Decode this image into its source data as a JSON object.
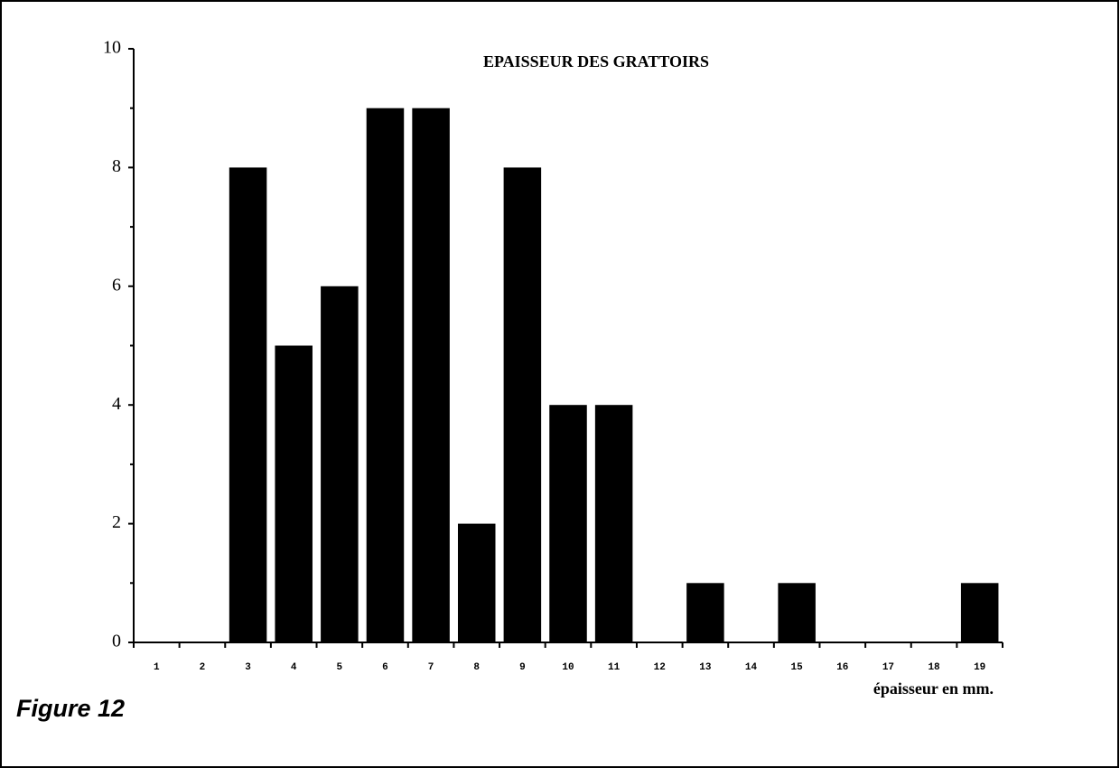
{
  "chart_data": {
    "type": "bar",
    "title": "EPAISSEUR DES GRATTOIRS",
    "xlabel": "épaisseur en mm.",
    "figure_label": "Figure 12",
    "categories": [
      "1",
      "2",
      "3",
      "4",
      "5",
      "6",
      "7",
      "8",
      "9",
      "10",
      "11",
      "12",
      "13",
      "14",
      "15",
      "16",
      "17",
      "18",
      "19"
    ],
    "values": [
      0,
      0,
      8,
      5,
      6,
      9,
      9,
      2,
      8,
      4,
      4,
      0,
      1,
      0,
      1,
      0,
      0,
      0,
      1
    ],
    "color": "#000000",
    "ylim": [
      0,
      10
    ],
    "yticks": [
      0,
      2,
      4,
      6,
      8,
      10
    ],
    "yticks_minor": [
      1,
      3,
      5,
      7,
      9
    ],
    "grid": false
  }
}
